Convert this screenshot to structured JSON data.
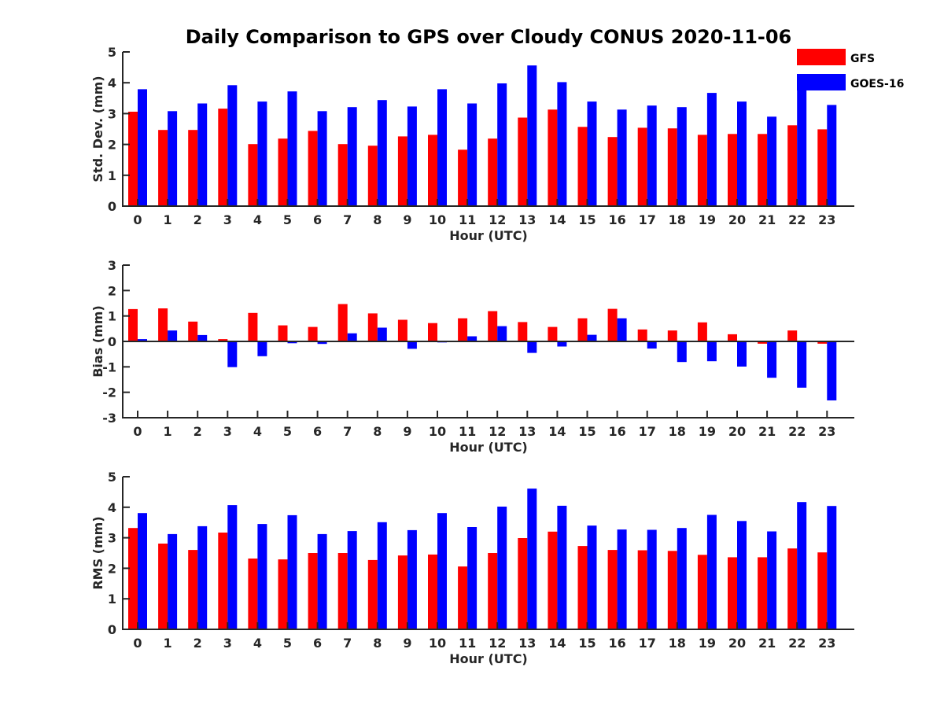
{
  "chart_data": {
    "title": "Daily Comparison to GPS over Cloudy CONUS 2020-11-06",
    "type": "bar",
    "legend": {
      "placement": "top-right",
      "entries": [
        {
          "name": "GFS",
          "color": "#ff0000"
        },
        {
          "name": "GOES-16",
          "color": "#0000ff"
        }
      ]
    },
    "categories": [
      "0",
      "1",
      "2",
      "3",
      "4",
      "5",
      "6",
      "7",
      "8",
      "9",
      "10",
      "11",
      "12",
      "13",
      "14",
      "15",
      "16",
      "17",
      "18",
      "19",
      "20",
      "21",
      "22",
      "23"
    ],
    "panels": [
      {
        "type": "bar",
        "ylabel": "Std. Dev. (mm)",
        "xlabel": "Hour (UTC)",
        "ylim": [
          0,
          5
        ],
        "yticks": [
          "0",
          "1",
          "2",
          "3",
          "4",
          "5"
        ],
        "grid": false,
        "series": [
          {
            "name": "GFS",
            "color": "#ff0000",
            "values": [
              3.06,
              2.47,
              2.47,
              3.16,
              2.01,
              2.19,
              2.44,
              2.01,
              1.96,
              2.26,
              2.31,
              1.83,
              2.19,
              2.87,
              3.13,
              2.57,
              2.24,
              2.54,
              2.52,
              2.31,
              2.34,
              2.34,
              2.62,
              2.49
            ]
          },
          {
            "name": "GOES-16",
            "color": "#0000ff",
            "values": [
              3.79,
              3.08,
              3.33,
              3.92,
              3.39,
              3.72,
              3.08,
              3.21,
              3.44,
              3.23,
              3.79,
              3.33,
              3.98,
              4.56,
              4.02,
              3.39,
              3.13,
              3.26,
              3.21,
              3.67,
              3.39,
              2.9,
              3.75,
              3.28
            ]
          }
        ]
      },
      {
        "type": "bar",
        "ylabel": "Bias (mm)",
        "xlabel": "Hour (UTC)",
        "ylim": [
          -3,
          3
        ],
        "yticks": [
          "-3",
          "-2",
          "-1",
          "0",
          "1",
          "2",
          "3"
        ],
        "grid": false,
        "series": [
          {
            "name": "GFS",
            "color": "#ff0000",
            "values": [
              1.27,
              1.3,
              0.78,
              0.09,
              1.12,
              0.63,
              0.57,
              1.47,
              1.1,
              0.85,
              0.72,
              0.91,
              1.19,
              0.76,
              0.57,
              0.91,
              1.28,
              0.47,
              0.43,
              0.75,
              0.28,
              -0.09,
              0.43,
              -0.09
            ]
          },
          {
            "name": "GOES-16",
            "color": "#0000ff",
            "values": [
              0.09,
              0.43,
              0.25,
              -1.01,
              -0.58,
              -0.07,
              -0.1,
              0.32,
              0.54,
              -0.29,
              -0.04,
              0.2,
              0.6,
              -0.45,
              -0.2,
              0.26,
              0.91,
              -0.28,
              -0.81,
              -0.78,
              -0.99,
              -1.43,
              -1.82,
              -2.32
            ]
          }
        ]
      },
      {
        "type": "bar",
        "ylabel": "RMS (mm)",
        "xlabel": "Hour (UTC)",
        "ylim": [
          0,
          5
        ],
        "yticks": [
          "0",
          "1",
          "2",
          "3",
          "4",
          "5"
        ],
        "grid": false,
        "series": [
          {
            "name": "GFS",
            "color": "#ff0000",
            "values": [
              3.32,
              2.81,
              2.6,
              3.17,
              2.32,
              2.29,
              2.5,
              2.5,
              2.27,
              2.42,
              2.45,
              2.06,
              2.5,
              2.99,
              3.2,
              2.73,
              2.6,
              2.59,
              2.57,
              2.44,
              2.36,
              2.36,
              2.65,
              2.52
            ]
          },
          {
            "name": "GOES-16",
            "color": "#0000ff",
            "values": [
              3.81,
              3.12,
              3.38,
              4.07,
              3.45,
              3.74,
              3.12,
              3.22,
              3.51,
              3.25,
              3.81,
              3.35,
              4.02,
              4.61,
              4.05,
              3.4,
              3.27,
              3.26,
              3.32,
              3.75,
              3.55,
              3.21,
              4.17,
              4.04
            ]
          }
        ]
      }
    ]
  }
}
